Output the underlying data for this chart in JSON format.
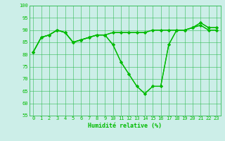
{
  "xlabel": "Humidité relative (%)",
  "background_color": "#cceee8",
  "grid_color": "#33bb55",
  "line_color": "#00bb00",
  "xlim": [
    -0.5,
    23.5
  ],
  "ylim": [
    55,
    100
  ],
  "yticks": [
    55,
    60,
    65,
    70,
    75,
    80,
    85,
    90,
    95,
    100
  ],
  "xticks": [
    0,
    1,
    2,
    3,
    4,
    5,
    6,
    7,
    8,
    9,
    10,
    11,
    12,
    13,
    14,
    15,
    16,
    17,
    18,
    19,
    20,
    21,
    22,
    23
  ],
  "series": [
    [
      81,
      87,
      88,
      90,
      89,
      85,
      86,
      87,
      88,
      88,
      89,
      89,
      89,
      89,
      89,
      90,
      90,
      90,
      90,
      90,
      91,
      93,
      91,
      91
    ],
    [
      81,
      87,
      88,
      90,
      89,
      85,
      86,
      87,
      88,
      88,
      89,
      89,
      89,
      89,
      89,
      90,
      90,
      90,
      90,
      90,
      91,
      93,
      91,
      91
    ],
    [
      81,
      87,
      88,
      90,
      89,
      85,
      86,
      87,
      88,
      88,
      84,
      77,
      72,
      67,
      64,
      67,
      67,
      84,
      90,
      90,
      91,
      92,
      90,
      90
    ],
    [
      81,
      87,
      88,
      90,
      89,
      85,
      86,
      87,
      88,
      88,
      84,
      77,
      72,
      67,
      64,
      67,
      67,
      84,
      90,
      90,
      91,
      92,
      90,
      90
    ]
  ],
  "label_fontsize": 5.0,
  "xlabel_fontsize": 6.0,
  "linewidth": 0.9,
  "markersize": 2.2
}
